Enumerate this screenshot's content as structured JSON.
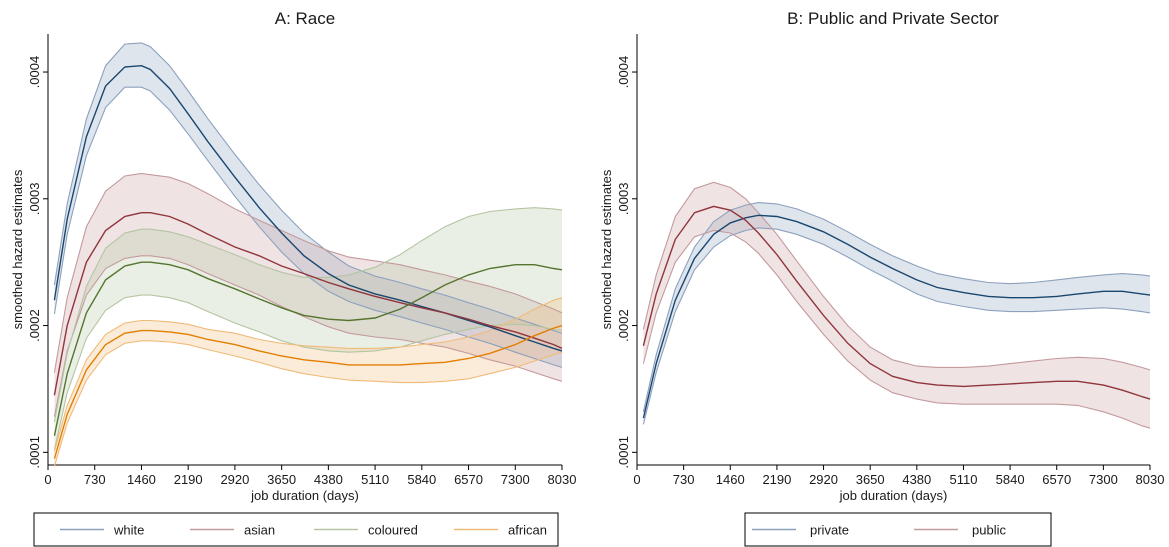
{
  "chart_data": [
    {
      "type": "line",
      "title": "A: Race",
      "xlabel": "job duration (days)",
      "ylabel": "smoothed hazard estimates",
      "xlim": [
        0,
        8030
      ],
      "ylim": [
        9e-05,
        0.00043
      ],
      "xticks": [
        0,
        730,
        1460,
        2190,
        2920,
        3650,
        4380,
        5110,
        5840,
        6570,
        7300,
        8030
      ],
      "xtick_labels": [
        "0",
        "730",
        "1460",
        "2190",
        "2920",
        "3650",
        "4380",
        "5110",
        "5840",
        "6570",
        "7300",
        "8030"
      ],
      "yticks": [
        0.0001,
        0.0002,
        0.0003,
        0.0004
      ],
      "ytick_labels": [
        ".0001",
        ".0002",
        ".0003",
        ".0004"
      ],
      "grid": false,
      "legend_position": "bottom",
      "x": [
        100,
        300,
        600,
        900,
        1200,
        1460,
        1600,
        1900,
        2190,
        2500,
        2920,
        3300,
        3650,
        4000,
        4380,
        4700,
        5110,
        5500,
        5840,
        6200,
        6570,
        6900,
        7300,
        7600,
        7900,
        8030
      ],
      "series": [
        {
          "name": "white",
          "color": "#1a476f",
          "band_color": "#8ca1bd",
          "estimate": [
            0.00022,
            0.000284,
            0.000349,
            0.000389,
            0.000404,
            0.000405,
            0.000402,
            0.000387,
            0.000367,
            0.000345,
            0.000317,
            0.000293,
            0.000273,
            0.000255,
            0.000241,
            0.000232,
            0.000225,
            0.00022,
            0.000215,
            0.00021,
            0.000204,
            0.000199,
            0.000192,
            0.000187,
            0.000182,
            0.00018
          ],
          "lower": [
            0.000209,
            0.000272,
            0.000334,
            0.000372,
            0.000388,
            0.000388,
            0.000385,
            0.00037,
            0.000351,
            0.00033,
            0.000302,
            0.000278,
            0.000258,
            0.000241,
            0.000227,
            0.000219,
            0.000212,
            0.000207,
            0.000202,
            0.000197,
            0.000191,
            0.000186,
            0.000179,
            0.000174,
            0.000169,
            0.000167
          ],
          "upper": [
            0.000232,
            0.000296,
            0.000363,
            0.000405,
            0.000422,
            0.000423,
            0.00042,
            0.000405,
            0.000385,
            0.000363,
            0.000335,
            0.000311,
            0.000291,
            0.000273,
            0.000258,
            0.000247,
            0.000239,
            0.000234,
            0.000229,
            0.000224,
            0.000218,
            0.000213,
            0.000206,
            0.000201,
            0.000196,
            0.000194
          ]
        },
        {
          "name": "asian",
          "color": "#90353b",
          "band_color": "#c49a9d",
          "estimate": [
            0.000145,
            0.0002,
            0.00025,
            0.000275,
            0.000286,
            0.000289,
            0.000289,
            0.000286,
            0.00028,
            0.000272,
            0.000262,
            0.000255,
            0.000247,
            0.000241,
            0.000234,
            0.000229,
            0.000223,
            0.000218,
            0.000214,
            0.00021,
            0.000205,
            0.0002,
            0.000195,
            0.00019,
            0.000185,
            0.000182
          ],
          "lower": [
            0.000128,
            0.00018,
            0.000224,
            0.000245,
            0.000253,
            0.000255,
            0.000255,
            0.000253,
            0.000248,
            0.000241,
            0.000232,
            0.000224,
            0.000215,
            0.000207,
            0.000199,
            0.000194,
            0.000191,
            0.000189,
            0.000186,
            0.000183,
            0.000178,
            0.000173,
            0.000168,
            0.000163,
            0.000158,
            0.000156
          ],
          "upper": [
            0.000163,
            0.000222,
            0.000278,
            0.000306,
            0.000318,
            0.00032,
            0.000319,
            0.000317,
            0.000312,
            0.000304,
            0.000292,
            0.000283,
            0.000275,
            0.000267,
            0.000259,
            0.000254,
            0.000251,
            0.000248,
            0.000244,
            0.00024,
            0.000235,
            0.000231,
            0.000225,
            0.000219,
            0.000213,
            0.00021
          ]
        },
        {
          "name": "coloured",
          "color": "#55752f",
          "band_color": "#b4c5a2",
          "estimate": [
            0.000113,
            0.000162,
            0.00021,
            0.000236,
            0.000247,
            0.00025,
            0.00025,
            0.000248,
            0.000244,
            0.000237,
            0.000229,
            0.000221,
            0.000214,
            0.000208,
            0.000205,
            0.000204,
            0.000206,
            0.000213,
            0.000222,
            0.000232,
            0.00024,
            0.000245,
            0.000248,
            0.000248,
            0.000245,
            0.000244
          ],
          "lower": [
            0.000102,
            0.000147,
            0.00019,
            0.000212,
            0.000222,
            0.000224,
            0.000224,
            0.000222,
            0.000218,
            0.000211,
            0.000202,
            0.000195,
            0.000188,
            0.000183,
            0.00018,
            0.000179,
            0.00018,
            0.000183,
            0.000188,
            0.000193,
            0.000197,
            0.0002,
            0.000201,
            0.0002,
            0.000197,
            0.000196
          ],
          "upper": [
            0.000124,
            0.000178,
            0.000231,
            0.000261,
            0.000273,
            0.000276,
            0.000276,
            0.000274,
            0.00027,
            0.000264,
            0.000256,
            0.000248,
            0.000242,
            0.000238,
            0.000238,
            0.00024,
            0.000246,
            0.000256,
            0.000267,
            0.000278,
            0.000286,
            0.00029,
            0.000292,
            0.000293,
            0.000292,
            0.000291
          ]
        },
        {
          "name": "african",
          "color": "#e37e00",
          "band_color": "#f0bb7a",
          "estimate": [
            9.5e-05,
            0.00013,
            0.000165,
            0.000185,
            0.000194,
            0.000196,
            0.000196,
            0.000195,
            0.000193,
            0.000189,
            0.000185,
            0.00018,
            0.000176,
            0.000173,
            0.000171,
            0.000169,
            0.000169,
            0.000169,
            0.00017,
            0.000171,
            0.000174,
            0.000178,
            0.000185,
            0.000192,
            0.000198,
            0.0002
          ],
          "lower": [
            8.9e-05,
            0.000123,
            0.000157,
            0.000177,
            0.000186,
            0.000188,
            0.000188,
            0.000187,
            0.000185,
            0.000181,
            0.000176,
            0.000171,
            0.000166,
            0.000162,
            0.000159,
            0.000157,
            0.000156,
            0.000155,
            0.000155,
            0.000156,
            0.000158,
            0.000162,
            0.000167,
            0.000172,
            0.000177,
            0.000179
          ],
          "upper": [
            0.000101,
            0.000137,
            0.000173,
            0.000193,
            0.000202,
            0.000204,
            0.000204,
            0.000203,
            0.000201,
            0.000197,
            0.000194,
            0.000189,
            0.000186,
            0.000184,
            0.000183,
            0.000182,
            0.000182,
            0.000183,
            0.000185,
            0.000187,
            0.000191,
            0.000196,
            0.000205,
            0.000213,
            0.00022,
            0.000222
          ]
        }
      ]
    },
    {
      "type": "line",
      "title": "B: Public and Private Sector",
      "xlabel": "job duration (days)",
      "ylabel": "smoothed hazard estimates",
      "xlim": [
        0,
        8030
      ],
      "ylim": [
        9e-05,
        0.00043
      ],
      "xticks": [
        0,
        730,
        1460,
        2190,
        2920,
        3650,
        4380,
        5110,
        5840,
        6570,
        7300,
        8030
      ],
      "xtick_labels": [
        "0",
        "730",
        "1460",
        "2190",
        "2920",
        "3650",
        "4380",
        "5110",
        "5840",
        "6570",
        "7300",
        "8030"
      ],
      "yticks": [
        0.0001,
        0.0002,
        0.0003,
        0.0004
      ],
      "ytick_labels": [
        ".0001",
        ".0002",
        ".0003",
        ".0004"
      ],
      "grid": false,
      "legend_position": "bottom",
      "x": [
        100,
        300,
        600,
        900,
        1200,
        1460,
        1700,
        1900,
        2190,
        2500,
        2920,
        3300,
        3650,
        4000,
        4380,
        4700,
        5110,
        5500,
        5840,
        6200,
        6570,
        6900,
        7300,
        7600,
        7900,
        8030
      ],
      "series": [
        {
          "name": "private",
          "color": "#1a476f",
          "band_color": "#8ca1bd",
          "estimate": [
            0.000127,
            0.00017,
            0.00022,
            0.000253,
            0.000272,
            0.000281,
            0.000285,
            0.000287,
            0.000286,
            0.000282,
            0.000274,
            0.000264,
            0.000254,
            0.000245,
            0.000236,
            0.00023,
            0.000226,
            0.000223,
            0.000222,
            0.000222,
            0.000223,
            0.000225,
            0.000227,
            0.000227,
            0.000225,
            0.000224
          ],
          "lower": [
            0.000122,
            0.000163,
            0.000211,
            0.000244,
            0.000262,
            0.000271,
            0.000275,
            0.000277,
            0.000276,
            0.000272,
            0.000264,
            0.000254,
            0.000244,
            0.000235,
            0.000225,
            0.000219,
            0.000215,
            0.000212,
            0.000211,
            0.000211,
            0.000212,
            0.000213,
            0.000214,
            0.000213,
            0.000211,
            0.00021
          ],
          "upper": [
            0.000132,
            0.000177,
            0.000229,
            0.000262,
            0.000282,
            0.000291,
            0.000295,
            0.000297,
            0.000296,
            0.000292,
            0.000284,
            0.000274,
            0.000264,
            0.000255,
            0.000247,
            0.000241,
            0.000237,
            0.000234,
            0.000233,
            0.000234,
            0.000236,
            0.000238,
            0.00024,
            0.000241,
            0.00024,
            0.000239
          ]
        },
        {
          "name": "public",
          "color": "#90353b",
          "band_color": "#c49a9d",
          "estimate": [
            0.000184,
            0.000225,
            0.000268,
            0.000289,
            0.000294,
            0.000291,
            0.000283,
            0.000273,
            0.000256,
            0.000235,
            0.000208,
            0.000186,
            0.00017,
            0.00016,
            0.000155,
            0.000153,
            0.000152,
            0.000153,
            0.000154,
            0.000155,
            0.000156,
            0.000156,
            0.000153,
            0.000149,
            0.000144,
            0.000142
          ],
          "lower": [
            0.00017,
            0.00021,
            0.00025,
            0.00027,
            0.000275,
            0.000273,
            0.000266,
            0.000257,
            0.00024,
            0.000219,
            0.000193,
            0.000172,
            0.000157,
            0.000147,
            0.000142,
            0.000139,
            0.000138,
            0.000138,
            0.000138,
            0.000138,
            0.000138,
            0.000137,
            0.000132,
            0.000127,
            0.000121,
            0.000119
          ],
          "upper": [
            0.000197,
            0.00024,
            0.000286,
            0.000308,
            0.000313,
            0.000309,
            0.0003,
            0.000289,
            0.000272,
            0.000251,
            0.000223,
            0.0002,
            0.000183,
            0.000173,
            0.000168,
            0.000167,
            0.000167,
            0.000168,
            0.00017,
            0.000172,
            0.000174,
            0.000175,
            0.000174,
            0.000171,
            0.000167,
            0.000165
          ]
        }
      ]
    }
  ]
}
